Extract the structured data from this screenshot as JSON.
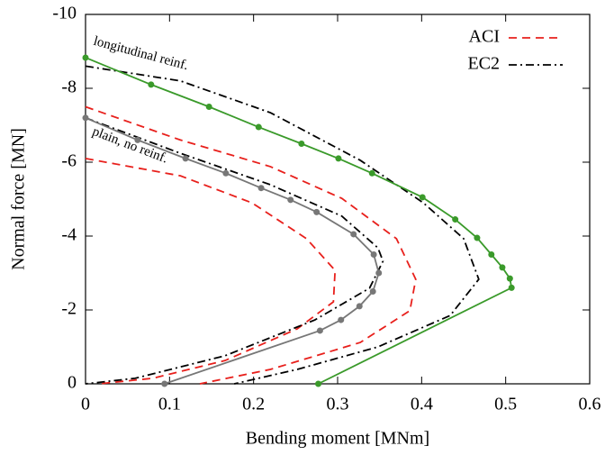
{
  "chart_data": {
    "type": "line",
    "x_label": "Bending moment [MNm]",
    "y_label": "Normal force [MN]",
    "xlim": [
      0,
      0.6
    ],
    "xticks": [
      0,
      0.1,
      0.2,
      0.3,
      0.4,
      0.5,
      0.6
    ],
    "ylim": [
      0,
      -10
    ],
    "yticks": [
      0,
      -2,
      -4,
      -6,
      -8,
      -10
    ],
    "legend": "top-right",
    "annotations": [
      "longitudinal reinf.",
      "plain, no reinf."
    ],
    "series": [
      {
        "name": "ACI",
        "color": "#e8201c",
        "linestyle": "dashed",
        "markers": false,
        "x": [
          0,
          0.113,
          0.198,
          0.263,
          0.297,
          0.295,
          0.252,
          0.166,
          0.08,
          0.016,
          null,
          0,
          0.113,
          0.22,
          0.305,
          0.37,
          0.393,
          0.386,
          0.327,
          0.22,
          0.136
        ],
        "values": [
          -6.1,
          -5.63,
          -4.9,
          -3.93,
          -3.07,
          -2.22,
          -1.49,
          -0.63,
          -0.15,
          0,
          null,
          -7.5,
          -6.6,
          -5.88,
          -5.02,
          -3.93,
          -2.83,
          -1.98,
          -1.12,
          -0.39,
          0
        ]
      },
      {
        "name": "EC2",
        "color": "#000000",
        "linestyle": "dashdot",
        "markers": false,
        "x": [
          0,
          0.113,
          0.22,
          0.305,
          0.348,
          0.354,
          0.338,
          0.273,
          0.166,
          0.059,
          0,
          null,
          0,
          0.113,
          0.22,
          0.327,
          0.402,
          0.45,
          0.468,
          0.434,
          0.348,
          0.252,
          0.177
        ],
        "values": [
          -7.2,
          -6.24,
          -5.39,
          -4.54,
          -3.68,
          -3.32,
          -2.59,
          -1.73,
          -0.76,
          -0.15,
          0,
          null,
          -8.6,
          -8.2,
          -7.34,
          -6.05,
          -4.9,
          -3.93,
          -2.83,
          -1.85,
          -1.0,
          -0.39,
          0
        ]
      },
      {
        "color": "#3a9a2a",
        "linestyle": "solid",
        "markers": true,
        "x": [
          0,
          0.078,
          0.147,
          0.206,
          0.257,
          0.301,
          0.341,
          0.401,
          0.44,
          0.466,
          0.483,
          0.496,
          0.505,
          0.507,
          0.277
        ],
        "values": [
          -8.83,
          -8.1,
          -7.5,
          -6.95,
          -6.5,
          -6.1,
          -5.7,
          -5.05,
          -4.45,
          -3.95,
          -3.5,
          -3.15,
          -2.85,
          -2.6,
          0
        ]
      },
      {
        "color": "#777777",
        "linestyle": "solid",
        "markers": true,
        "x": [
          0,
          0.062,
          0.119,
          0.167,
          0.209,
          0.244,
          0.275,
          0.319,
          0.343,
          0.349,
          0.342,
          0.326,
          0.304,
          0.279,
          0.094
        ],
        "values": [
          -7.2,
          -6.6,
          -6.1,
          -5.7,
          -5.3,
          -4.98,
          -4.65,
          -4.05,
          -3.5,
          -3.0,
          -2.5,
          -2.1,
          -1.73,
          -1.44,
          0
        ]
      }
    ]
  }
}
